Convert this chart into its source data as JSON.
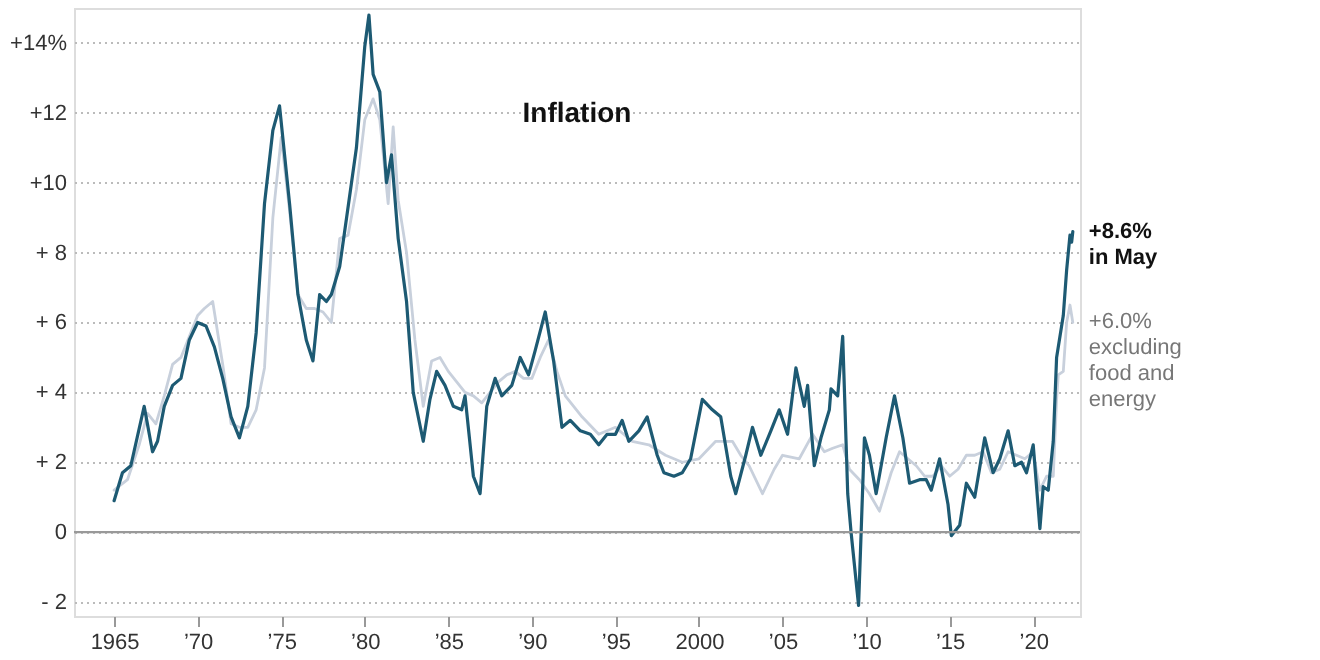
{
  "chart_data": {
    "type": "line",
    "title": "Inflation",
    "xlim": [
      1962.6,
      2022.8
    ],
    "ylim": [
      -2.4,
      15
    ],
    "xticks": [
      1965,
      {
        "value": 1970,
        "label": "’70"
      },
      {
        "value": 1975,
        "label": "’75"
      },
      {
        "value": 1980,
        "label": "’80"
      },
      {
        "value": 1985,
        "label": "’85"
      },
      {
        "value": 1990,
        "label": "’90"
      },
      {
        "value": 1995,
        "label": "’95"
      },
      2000,
      {
        "value": 2005,
        "label": "’05"
      },
      {
        "value": 2010,
        "label": "’10"
      },
      {
        "value": 2015,
        "label": "’15"
      },
      {
        "value": 2020,
        "label": "’20"
      }
    ],
    "yticks": [
      {
        "value": -2,
        "label": "- 2"
      },
      0,
      {
        "value": 2,
        "label": "+ 2"
      },
      {
        "value": 4,
        "label": "+ 4"
      },
      {
        "value": 6,
        "label": "+ 6"
      },
      {
        "value": 8,
        "label": "+ 8"
      },
      {
        "value": 10,
        "label": "+10"
      },
      {
        "value": 12,
        "label": "+12"
      },
      {
        "value": 14,
        "label": "+14%"
      }
    ],
    "grid": "y",
    "ref_lines": [
      {
        "axis": "y",
        "value": 0,
        "color": "#999999",
        "line_style": "solid"
      }
    ],
    "annotations": [
      {
        "text": "+8.6%\nin May",
        "x": 2022.37,
        "y": 8.6
      },
      {
        "text": "+6.0%\nexcluding\nfood and\nenergy",
        "x": 2022.37,
        "y": 6.0
      }
    ],
    "series": [
      {
        "color": "#c8d0dc",
        "x": [
          1965.0,
          1965.8,
          1966.5,
          1967.0,
          1967.5,
          1968.0,
          1968.5,
          1969.0,
          1969.5,
          1970.0,
          1970.4,
          1970.9,
          1971.5,
          1972.0,
          1972.5,
          1973.0,
          1973.5,
          1974.0,
          1974.5,
          1975.0,
          1975.5,
          1976.0,
          1976.5,
          1977.0,
          1977.5,
          1978.0,
          1978.5,
          1979.0,
          1979.5,
          1980.0,
          1980.5,
          1980.9,
          1981.4,
          1981.7,
          1982.0,
          1982.5,
          1983.0,
          1983.5,
          1984.0,
          1984.5,
          1985.0,
          1985.5,
          1986.0,
          1986.5,
          1987.0,
          1987.5,
          1988.0,
          1988.5,
          1989.0,
          1989.5,
          1990.0,
          1990.5,
          1991.0,
          1991.5,
          1992.0,
          1992.5,
          1993.0,
          1994.0,
          1995.0,
          1996.0,
          1997.0,
          1998.0,
          1999.0,
          2000.0,
          2001.0,
          2002.0,
          2002.5,
          2003.0,
          2003.8,
          2004.5,
          2005.0,
          2006.0,
          2006.8,
          2007.5,
          2008.0,
          2008.6,
          2009.0,
          2009.6,
          2010.2,
          2010.8,
          2011.5,
          2012.0,
          2012.5,
          2013.0,
          2013.5,
          2014.0,
          2014.5,
          2015.0,
          2015.5,
          2016.0,
          2016.5,
          2017.0,
          2017.5,
          2018.0,
          2018.5,
          2019.0,
          2019.5,
          2020.0,
          2020.4,
          2020.8,
          2021.2,
          2021.4,
          2021.5,
          2021.8,
          2022.0,
          2022.2,
          2022.37
        ],
        "values": [
          1.2,
          1.5,
          2.5,
          3.4,
          3.1,
          3.9,
          4.8,
          5.0,
          5.6,
          6.2,
          6.4,
          6.6,
          4.8,
          3.1,
          3.0,
          3.0,
          3.5,
          4.7,
          9.0,
          11.3,
          9.2,
          6.8,
          6.4,
          6.4,
          6.3,
          6.0,
          8.4,
          8.5,
          9.8,
          11.8,
          12.4,
          11.8,
          9.4,
          11.6,
          9.5,
          8.0,
          5.5,
          3.6,
          4.9,
          5.0,
          4.6,
          4.3,
          4.0,
          3.9,
          3.7,
          4.0,
          4.3,
          4.5,
          4.6,
          4.4,
          4.4,
          5.0,
          5.5,
          4.6,
          3.9,
          3.6,
          3.3,
          2.8,
          3.0,
          2.6,
          2.5,
          2.2,
          2.0,
          2.1,
          2.6,
          2.6,
          2.2,
          1.9,
          1.1,
          1.8,
          2.2,
          2.1,
          2.8,
          2.3,
          2.4,
          2.5,
          1.8,
          1.5,
          1.1,
          0.6,
          1.7,
          2.3,
          2.1,
          1.9,
          1.6,
          1.6,
          1.9,
          1.6,
          1.8,
          2.2,
          2.2,
          2.3,
          1.7,
          1.8,
          2.3,
          2.2,
          2.1,
          2.3,
          1.2,
          1.6,
          1.6,
          3.8,
          4.5,
          4.6,
          6.0,
          6.5,
          6.0
        ]
      },
      {
        "color": "#1d5a73",
        "x": [
          1965.0,
          1965.5,
          1966.0,
          1966.8,
          1967.3,
          1967.6,
          1968.0,
          1968.5,
          1969.0,
          1969.5,
          1970.0,
          1970.5,
          1971.0,
          1971.5,
          1972.0,
          1972.5,
          1973.0,
          1973.5,
          1974.0,
          1974.5,
          1974.9,
          1975.5,
          1976.0,
          1976.5,
          1976.9,
          1977.3,
          1977.7,
          1978.0,
          1978.5,
          1979.0,
          1979.5,
          1980.0,
          1980.25,
          1980.5,
          1980.9,
          1981.3,
          1981.6,
          1982.0,
          1982.5,
          1982.9,
          1983.5,
          1983.9,
          1984.3,
          1984.8,
          1985.3,
          1985.8,
          1986.0,
          1986.5,
          1986.9,
          1987.3,
          1987.8,
          1988.2,
          1988.8,
          1989.3,
          1989.8,
          1990.2,
          1990.8,
          1991.3,
          1991.8,
          1992.3,
          1992.9,
          1993.5,
          1994.0,
          1994.5,
          1995.0,
          1995.4,
          1995.8,
          1996.4,
          1996.9,
          1997.5,
          1997.9,
          1998.5,
          1999.0,
          1999.5,
          2000.2,
          2000.8,
          2001.3,
          2001.9,
          2002.2,
          2002.8,
          2003.2,
          2003.7,
          2004.3,
          2004.8,
          2005.3,
          2005.8,
          2006.3,
          2006.5,
          2006.9,
          2007.3,
          2007.8,
          2007.9,
          2008.3,
          2008.6,
          2008.9,
          2009.1,
          2009.55,
          2009.9,
          2010.2,
          2010.6,
          2011.2,
          2011.7,
          2012.2,
          2012.6,
          2013.2,
          2013.6,
          2013.9,
          2014.4,
          2014.9,
          2015.1,
          2015.6,
          2016.0,
          2016.5,
          2017.1,
          2017.6,
          2018.0,
          2018.5,
          2018.9,
          2019.3,
          2019.6,
          2020.0,
          2020.4,
          2020.6,
          2020.9,
          2021.2,
          2021.4,
          2021.8,
          2022.0,
          2022.2,
          2022.3,
          2022.37
        ],
        "values": [
          0.9,
          1.7,
          1.9,
          3.6,
          2.3,
          2.6,
          3.6,
          4.2,
          4.4,
          5.5,
          6.0,
          5.9,
          5.3,
          4.4,
          3.3,
          2.7,
          3.6,
          5.7,
          9.4,
          11.5,
          12.2,
          9.4,
          6.8,
          5.5,
          4.9,
          6.8,
          6.6,
          6.8,
          7.6,
          9.3,
          11.0,
          13.9,
          14.8,
          13.1,
          12.6,
          10.0,
          10.8,
          8.4,
          6.6,
          4.0,
          2.6,
          3.8,
          4.6,
          4.2,
          3.6,
          3.5,
          3.9,
          1.6,
          1.1,
          3.6,
          4.4,
          3.9,
          4.2,
          5.0,
          4.5,
          5.2,
          6.3,
          4.9,
          3.0,
          3.2,
          2.9,
          2.8,
          2.5,
          2.8,
          2.8,
          3.2,
          2.6,
          2.9,
          3.3,
          2.2,
          1.7,
          1.6,
          1.7,
          2.1,
          3.8,
          3.5,
          3.3,
          1.6,
          1.1,
          2.2,
          3.0,
          2.2,
          2.9,
          3.5,
          2.8,
          4.7,
          3.6,
          4.2,
          1.9,
          2.7,
          3.5,
          4.1,
          3.9,
          5.6,
          1.1,
          0.0,
          -2.1,
          2.7,
          2.2,
          1.1,
          2.7,
          3.9,
          2.7,
          1.4,
          1.5,
          1.5,
          1.2,
          2.1,
          0.8,
          -0.1,
          0.2,
          1.4,
          1.0,
          2.7,
          1.7,
          2.1,
          2.9,
          1.9,
          2.0,
          1.7,
          2.5,
          0.1,
          1.3,
          1.2,
          2.6,
          5.0,
          6.2,
          7.5,
          8.5,
          8.3,
          8.6
        ]
      }
    ]
  }
}
